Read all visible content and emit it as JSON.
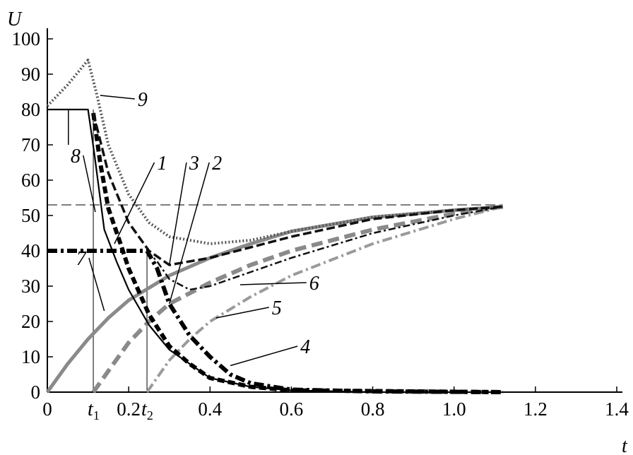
{
  "chart_data": {
    "type": "line",
    "title": "",
    "xlabel": "t",
    "ylabel": "U",
    "xlim": [
      0,
      1.4
    ],
    "ylim": [
      0,
      100
    ],
    "grid": false,
    "x_ticks": [
      {
        "value": 0,
        "label": "0"
      },
      {
        "value": 0.2,
        "label": "0.2"
      },
      {
        "value": 0.4,
        "label": "0.4"
      },
      {
        "value": 0.6,
        "label": "0.6"
      },
      {
        "value": 0.8,
        "label": "0.8"
      },
      {
        "value": 1.0,
        "label": "1.0"
      },
      {
        "value": 1.2,
        "label": "1.2"
      },
      {
        "value": 1.4,
        "label": "1.4"
      }
    ],
    "special_x_ticks": [
      {
        "value": 0.113,
        "label": "t",
        "sub": "1",
        "line_to": 80
      },
      {
        "value": 0.245,
        "label": "t",
        "sub": "2",
        "line_to": 40
      }
    ],
    "y_ticks": [
      0,
      10,
      20,
      30,
      40,
      50,
      60,
      70,
      80,
      90,
      100
    ],
    "reference_line": {
      "y": 53,
      "style": "dashed"
    },
    "series": [
      {
        "name": "7",
        "color": "#8a8a8a",
        "points": [
          [
            0,
            0
          ],
          [
            0.05,
            8
          ],
          [
            0.1,
            15
          ],
          [
            0.15,
            21
          ],
          [
            0.2,
            26
          ],
          [
            0.3,
            33
          ],
          [
            0.4,
            38
          ],
          [
            0.5,
            42
          ],
          [
            0.6,
            45.5
          ],
          [
            0.8,
            49.5
          ],
          [
            1.0,
            51.5
          ],
          [
            1.12,
            52.5
          ]
        ]
      },
      {
        "name": "2",
        "color": "#8a8a8a",
        "points": [
          [
            0.113,
            0
          ],
          [
            0.15,
            6
          ],
          [
            0.2,
            14
          ],
          [
            0.25,
            20
          ],
          [
            0.3,
            25
          ],
          [
            0.4,
            31
          ],
          [
            0.5,
            36
          ],
          [
            0.6,
            40
          ],
          [
            0.8,
            46
          ],
          [
            1.0,
            50.5
          ],
          [
            1.12,
            52.5
          ]
        ]
      },
      {
        "name": "5",
        "color": "#9a9a9a",
        "points": [
          [
            0.245,
            0
          ],
          [
            0.3,
            9
          ],
          [
            0.35,
            15
          ],
          [
            0.4,
            20
          ],
          [
            0.5,
            27
          ],
          [
            0.6,
            33
          ],
          [
            0.8,
            42
          ],
          [
            1.0,
            49
          ],
          [
            1.12,
            52.5
          ]
        ]
      },
      {
        "name": "9",
        "color": "#555555",
        "points": [
          [
            0,
            81
          ],
          [
            0.05,
            87
          ],
          [
            0.1,
            94
          ],
          [
            0.12,
            85
          ],
          [
            0.15,
            70
          ],
          [
            0.2,
            56
          ],
          [
            0.25,
            48
          ],
          [
            0.3,
            44
          ],
          [
            0.4,
            42
          ],
          [
            0.5,
            43
          ],
          [
            0.6,
            45.5
          ],
          [
            0.8,
            49.5
          ],
          [
            1.0,
            51.5
          ],
          [
            1.12,
            52.5
          ]
        ]
      },
      {
        "name": "8",
        "color": "#000000",
        "points": [
          [
            0,
            80
          ],
          [
            0.1,
            80
          ],
          [
            0.115,
            68
          ],
          [
            0.14,
            46
          ],
          [
            0.17,
            37
          ],
          [
            0.2,
            29
          ],
          [
            0.25,
            19
          ],
          [
            0.3,
            12
          ],
          [
            0.4,
            4
          ],
          [
            0.5,
            1.5
          ],
          [
            0.6,
            0.5
          ],
          [
            0.8,
            0
          ]
        ]
      },
      {
        "name": "1",
        "color": "#000000",
        "points": [
          [
            0.113,
            79
          ],
          [
            0.13,
            65
          ],
          [
            0.15,
            52
          ],
          [
            0.18,
            42
          ],
          [
            0.2,
            35
          ],
          [
            0.25,
            22
          ],
          [
            0.3,
            13
          ],
          [
            0.35,
            8
          ],
          [
            0.4,
            4
          ],
          [
            0.5,
            1.5
          ],
          [
            0.6,
            0.5
          ],
          [
            1.12,
            0
          ]
        ]
      },
      {
        "name": "3",
        "color": "#111111",
        "points": [
          [
            0.113,
            79
          ],
          [
            0.15,
            62
          ],
          [
            0.2,
            48
          ],
          [
            0.25,
            40
          ],
          [
            0.3,
            36
          ],
          [
            0.4,
            38
          ],
          [
            0.5,
            41
          ],
          [
            0.6,
            44
          ],
          [
            0.8,
            49
          ],
          [
            1.0,
            51.5
          ],
          [
            1.12,
            52.5
          ]
        ]
      },
      {
        "name": "4",
        "color": "#000000",
        "points": [
          [
            0,
            40
          ],
          [
            0.245,
            40
          ],
          [
            0.27,
            35
          ],
          [
            0.3,
            25
          ],
          [
            0.35,
            16
          ],
          [
            0.4,
            10
          ],
          [
            0.45,
            5
          ],
          [
            0.5,
            2.5
          ],
          [
            0.6,
            0.7
          ],
          [
            0.8,
            0.2
          ],
          [
            1.12,
            0
          ]
        ]
      },
      {
        "name": "6",
        "color": "#111111",
        "points": [
          [
            0.245,
            40
          ],
          [
            0.27,
            37
          ],
          [
            0.3,
            32
          ],
          [
            0.35,
            29
          ],
          [
            0.4,
            30
          ],
          [
            0.5,
            34
          ],
          [
            0.6,
            38
          ],
          [
            0.8,
            45
          ],
          [
            1.0,
            50
          ],
          [
            1.12,
            52.5
          ]
        ]
      }
    ],
    "annotations": [
      {
        "text": "9",
        "at": [
          0.222,
          81
        ],
        "target": [
          0.13,
          84
        ]
      },
      {
        "text": "8",
        "at": [
          0.057,
          65
        ],
        "target": [
          0.118,
          51
        ]
      },
      {
        "text": "1",
        "at": [
          0.27,
          63
        ],
        "target": [
          0.165,
          42
        ]
      },
      {
        "text": "3",
        "at": [
          0.349,
          63
        ],
        "target": [
          0.3,
          36
        ]
      },
      {
        "text": "2",
        "at": [
          0.405,
          63
        ],
        "target": [
          0.3,
          25
        ]
      },
      {
        "text": "7",
        "at": [
          0.071,
          36
        ],
        "target": [
          0.14,
          23
        ]
      },
      {
        "text": "6",
        "at": [
          0.644,
          29
        ],
        "target": [
          0.474,
          30.4
        ]
      },
      {
        "text": "5",
        "at": [
          0.552,
          22
        ],
        "target": [
          0.415,
          21
        ]
      },
      {
        "text": "4",
        "at": [
          0.622,
          11
        ],
        "target": [
          0.45,
          7.5
        ]
      }
    ]
  }
}
